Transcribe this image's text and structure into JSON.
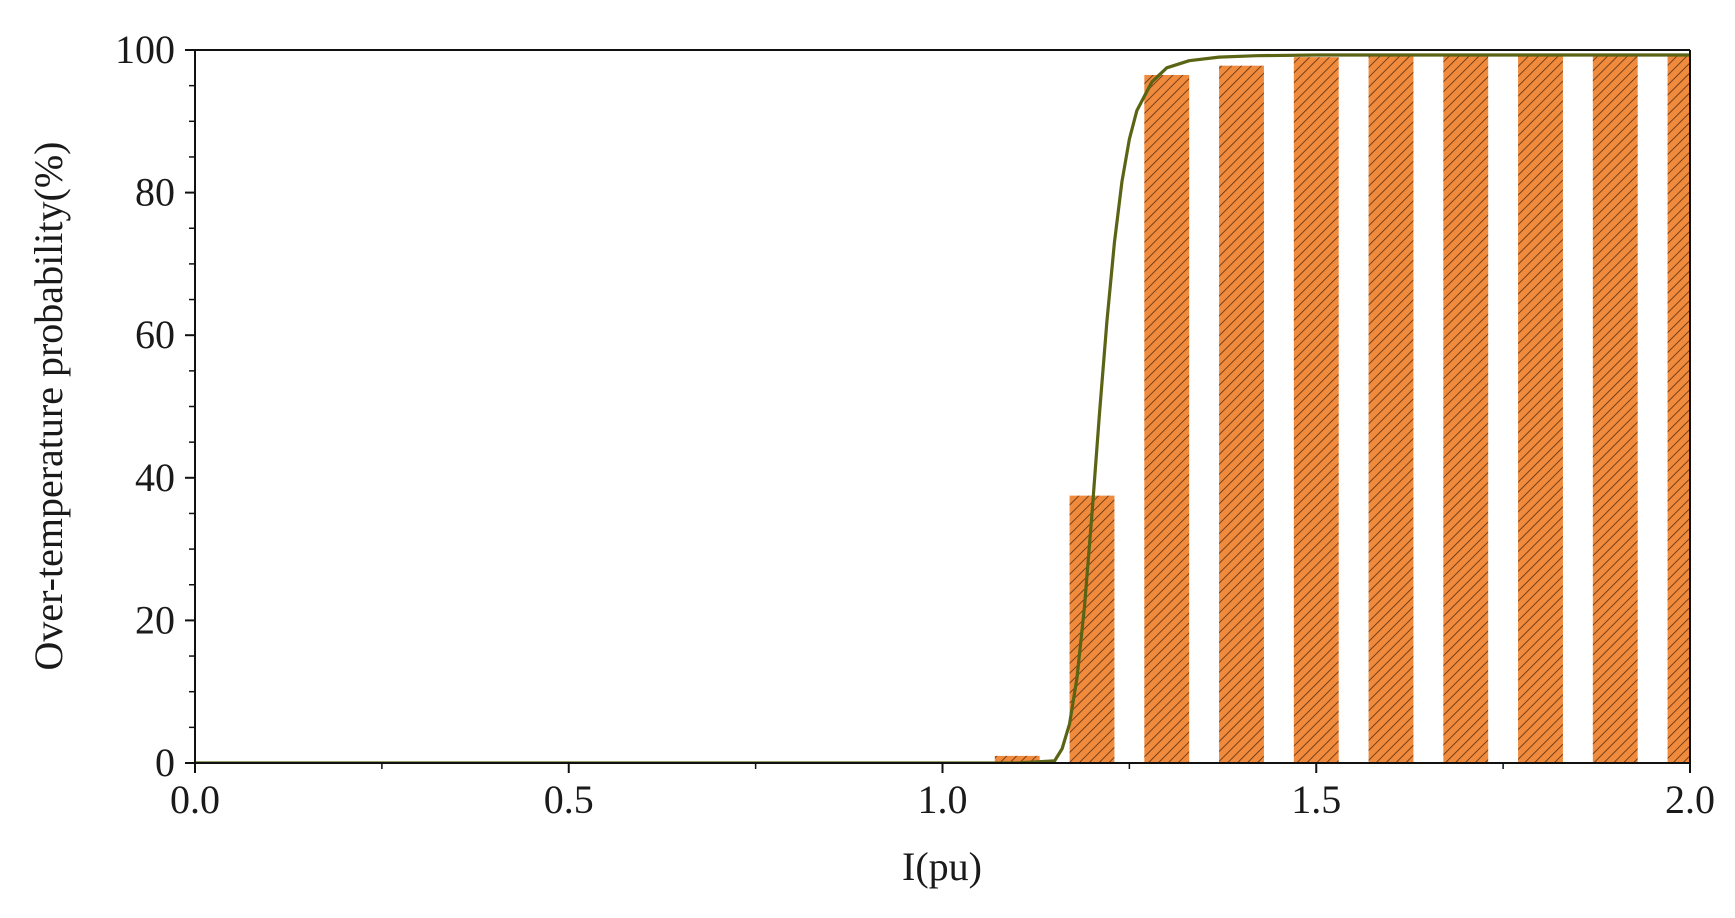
{
  "chart_data": {
    "type": "bar",
    "xlabel": "I(pu)",
    "ylabel": "Over-temperature probability(%)",
    "xlim": [
      0.0,
      2.0
    ],
    "ylim": [
      0,
      100
    ],
    "x_ticks": [
      "0.0",
      "0.5",
      "1.0",
      "1.5",
      "2.0"
    ],
    "y_ticks": [
      "0",
      "20",
      "40",
      "60",
      "80",
      "100"
    ],
    "grid": false,
    "legend": "none",
    "bar_color": "#F08A3C",
    "bar_hatch": "diagonal",
    "bars": [
      {
        "x": 1.1,
        "y": 1.0
      },
      {
        "x": 1.2,
        "y": 37.5
      },
      {
        "x": 1.3,
        "y": 96.5
      },
      {
        "x": 1.4,
        "y": 97.8
      },
      {
        "x": 1.5,
        "y": 99.0
      },
      {
        "x": 1.6,
        "y": 99.5
      },
      {
        "x": 1.7,
        "y": 99.5
      },
      {
        "x": 1.8,
        "y": 99.5
      },
      {
        "x": 1.9,
        "y": 99.5
      },
      {
        "x": 2.0,
        "y": 99.5
      }
    ],
    "bar_width": 0.06,
    "series": [
      {
        "type": "line",
        "color": "#5a6414",
        "x": [
          0.0,
          1.1,
          1.15,
          1.16,
          1.17,
          1.18,
          1.19,
          1.2,
          1.21,
          1.22,
          1.23,
          1.24,
          1.25,
          1.26,
          1.28,
          1.3,
          1.33,
          1.37,
          1.42,
          1.5,
          2.0
        ],
        "y": [
          0,
          0,
          0.3,
          2.0,
          5.5,
          12.0,
          22.0,
          35.0,
          49.0,
          62.0,
          73.0,
          81.5,
          87.5,
          91.5,
          95.5,
          97.5,
          98.5,
          99.0,
          99.2,
          99.3,
          99.3
        ]
      }
    ]
  }
}
